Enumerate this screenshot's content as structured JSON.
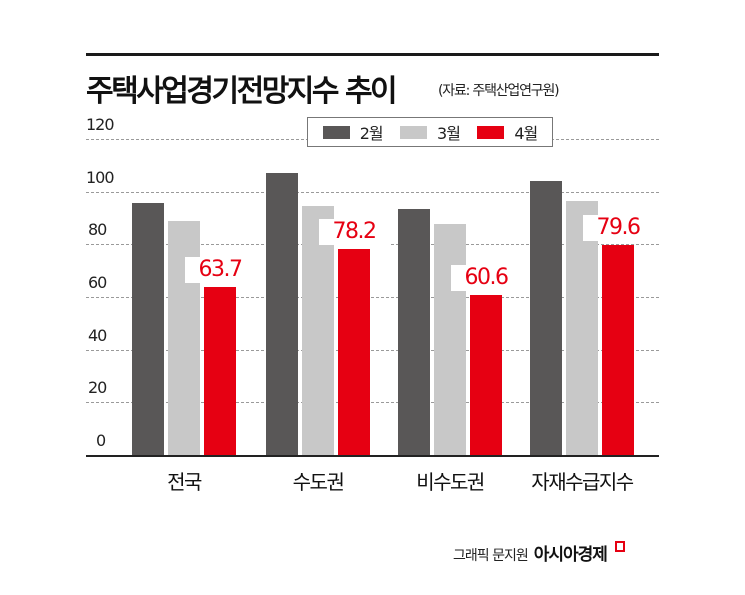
{
  "header": {
    "title": "주택사업경기전망지수 추이",
    "source": "(자료: 주택산업연구원)"
  },
  "legend": [
    {
      "label": "2월",
      "color": "#595757"
    },
    {
      "label": "3월",
      "color": "#c8c8c8"
    },
    {
      "label": "4월",
      "color": "#e60012"
    }
  ],
  "yticks": [
    "0",
    "20",
    "40",
    "60",
    "80",
    "100",
    "120"
  ],
  "categories": [
    "전국",
    "수도권",
    "비수도권",
    "자재수급지수"
  ],
  "labels": [
    "63.7",
    "78.2",
    "60.6",
    "79.6"
  ],
  "footer": {
    "credit": "그래픽 문지원",
    "brand": "아시아경제"
  },
  "chart_data": {
    "type": "bar",
    "title": "주택사업경기전망지수 추이",
    "subtitle": "(자료: 주택산업연구원)",
    "xlabel": "",
    "ylabel": "",
    "categories": [
      "전국",
      "수도권",
      "비수도권",
      "자재수급지수"
    ],
    "series": [
      {
        "name": "2월",
        "color": "#595757",
        "values": [
          95.6,
          107.0,
          93.4,
          104.0
        ]
      },
      {
        "name": "3월",
        "color": "#c8c8c8",
        "values": [
          88.8,
          94.5,
          87.7,
          96.4
        ]
      },
      {
        "name": "4월",
        "color": "#e60012",
        "values": [
          63.7,
          78.2,
          60.6,
          79.6
        ]
      }
    ],
    "data_labels": {
      "series": "4월",
      "values": [
        "63.7",
        "78.2",
        "60.6",
        "79.6"
      ]
    },
    "ylim": [
      0,
      120
    ],
    "yticks": [
      0,
      20,
      40,
      60,
      80,
      100,
      120
    ],
    "grid": true,
    "legend_position": "top-center"
  }
}
